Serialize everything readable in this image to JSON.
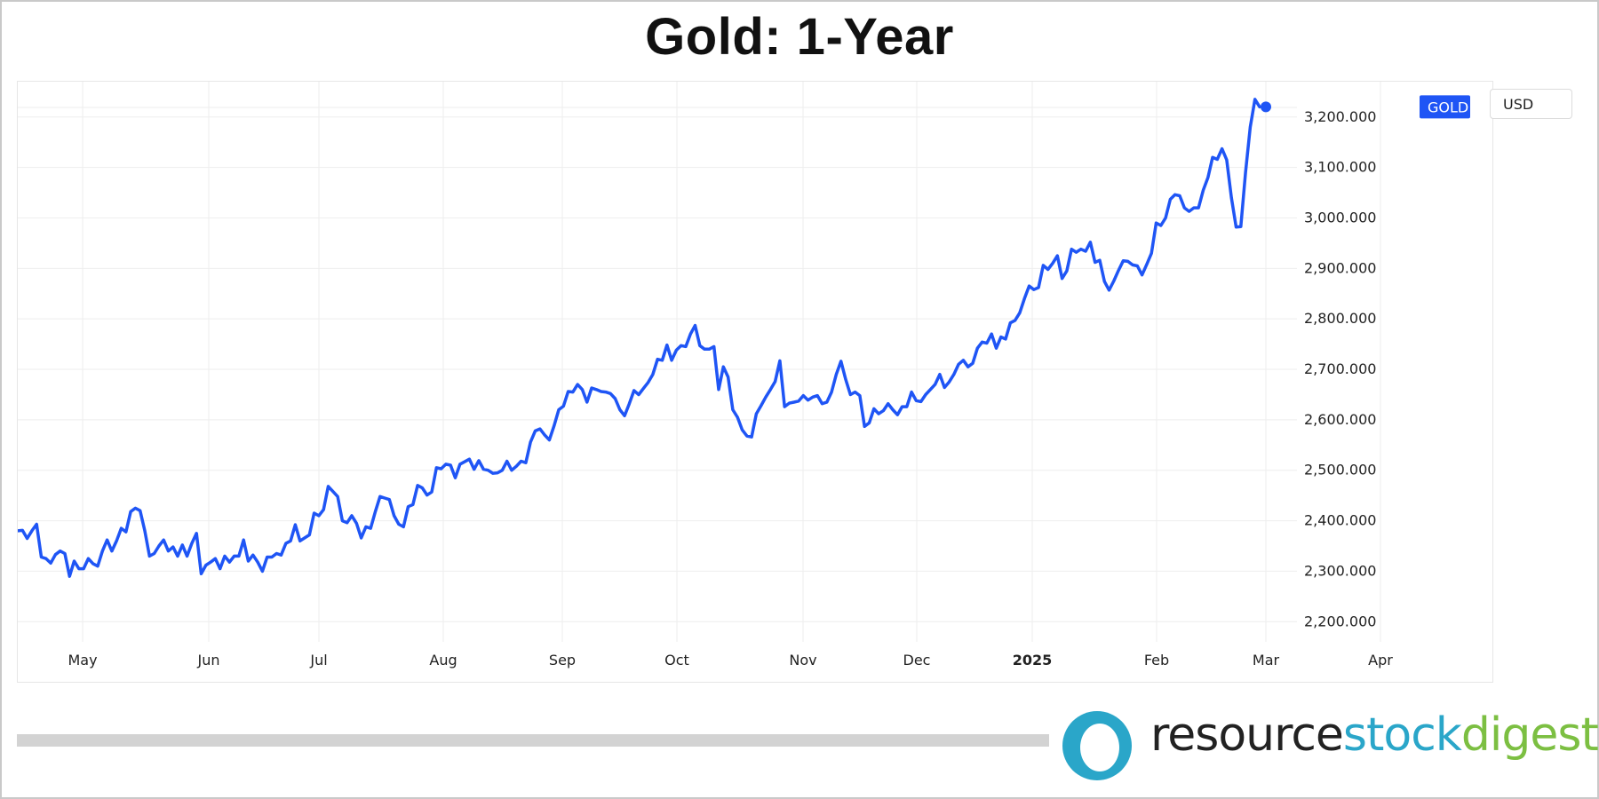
{
  "title": "Gold: 1-Year",
  "currency_label": "USD",
  "series_tag": "GOLD",
  "logo": {
    "part1": "resource",
    "part2": "stock",
    "part3": "digest",
    "colors": {
      "part1": "#222222",
      "part2": "#2aa6c9",
      "part3": "#7cbf42"
    }
  },
  "colors": {
    "line": "#1f55f5",
    "grid": "#eeeeee",
    "tag_bg": "#1f55f5",
    "tag_text": "#ffffff"
  },
  "chart_data": {
    "type": "line",
    "title": "Gold: 1-Year",
    "xlabel": "",
    "ylabel": "",
    "ylim": [
      2160,
      3270
    ],
    "grid": true,
    "x_tick_labels": [
      "May",
      "Jun",
      "Jul",
      "Aug",
      "Sep",
      "Oct",
      "Nov",
      "Dec",
      "2025",
      "Feb",
      "Mar",
      "Apr"
    ],
    "y_tick_labels": [
      "2,200.000",
      "2,300.000",
      "2,400.000",
      "2,500.000",
      "2,600.000",
      "2,700.000",
      "2,800.000",
      "2,900.000",
      "3,000.000",
      "3,100.000",
      "3,200.000"
    ],
    "y_ticks": [
      2200,
      2300,
      2400,
      2500,
      2600,
      2700,
      2800,
      2900,
      3000,
      3100,
      3200
    ],
    "series": [
      {
        "name": "GOLD",
        "values": [
          2380,
          2381,
          2365,
          2380,
          2393,
          2328,
          2325,
          2316,
          2333,
          2340,
          2335,
          2290,
          2320,
          2305,
          2305,
          2325,
          2315,
          2310,
          2340,
          2362,
          2340,
          2360,
          2385,
          2378,
          2418,
          2425,
          2420,
          2380,
          2330,
          2335,
          2350,
          2362,
          2340,
          2348,
          2330,
          2352,
          2330,
          2355,
          2375,
          2295,
          2312,
          2318,
          2325,
          2305,
          2330,
          2318,
          2330,
          2330,
          2362,
          2320,
          2332,
          2318,
          2300,
          2328,
          2328,
          2335,
          2332,
          2355,
          2360,
          2392,
          2360,
          2366,
          2372,
          2415,
          2410,
          2422,
          2468,
          2458,
          2448,
          2400,
          2396,
          2410,
          2395,
          2366,
          2388,
          2385,
          2418,
          2448,
          2445,
          2442,
          2410,
          2393,
          2388,
          2428,
          2432,
          2470,
          2465,
          2451,
          2457,
          2505,
          2503,
          2512,
          2510,
          2485,
          2512,
          2517,
          2522,
          2502,
          2519,
          2502,
          2500,
          2494,
          2495,
          2500,
          2518,
          2500,
          2508,
          2518,
          2515,
          2556,
          2578,
          2582,
          2570,
          2560,
          2588,
          2620,
          2627,
          2656,
          2655,
          2670,
          2660,
          2635,
          2663,
          2660,
          2656,
          2655,
          2652,
          2642,
          2620,
          2608,
          2632,
          2658,
          2650,
          2662,
          2674,
          2690,
          2720,
          2718,
          2748,
          2718,
          2738,
          2747,
          2745,
          2770,
          2787,
          2747,
          2740,
          2740,
          2745,
          2660,
          2705,
          2685,
          2620,
          2605,
          2580,
          2568,
          2566,
          2612,
          2628,
          2645,
          2660,
          2676,
          2717,
          2626,
          2633,
          2635,
          2637,
          2648,
          2639,
          2645,
          2648,
          2632,
          2635,
          2655,
          2690,
          2716,
          2680,
          2650,
          2655,
          2648,
          2587,
          2594,
          2622,
          2612,
          2618,
          2632,
          2620,
          2610,
          2626,
          2626,
          2655,
          2638,
          2636,
          2650,
          2660,
          2670,
          2690,
          2664,
          2675,
          2690,
          2710,
          2718,
          2705,
          2712,
          2742,
          2754,
          2752,
          2770,
          2742,
          2764,
          2760,
          2792,
          2797,
          2812,
          2840,
          2865,
          2858,
          2862,
          2906,
          2898,
          2910,
          2925,
          2880,
          2895,
          2938,
          2932,
          2938,
          2934,
          2952,
          2912,
          2916,
          2874,
          2857,
          2875,
          2896,
          2915,
          2914,
          2907,
          2905,
          2887,
          2908,
          2930,
          2990,
          2985,
          3000,
          3037,
          3046,
          3044,
          3020,
          3013,
          3020,
          3020,
          3055,
          3080,
          3120,
          3116,
          3137,
          3115,
          3040,
          2982,
          2983,
          3090,
          3180,
          3235,
          3220
        ]
      }
    ]
  }
}
